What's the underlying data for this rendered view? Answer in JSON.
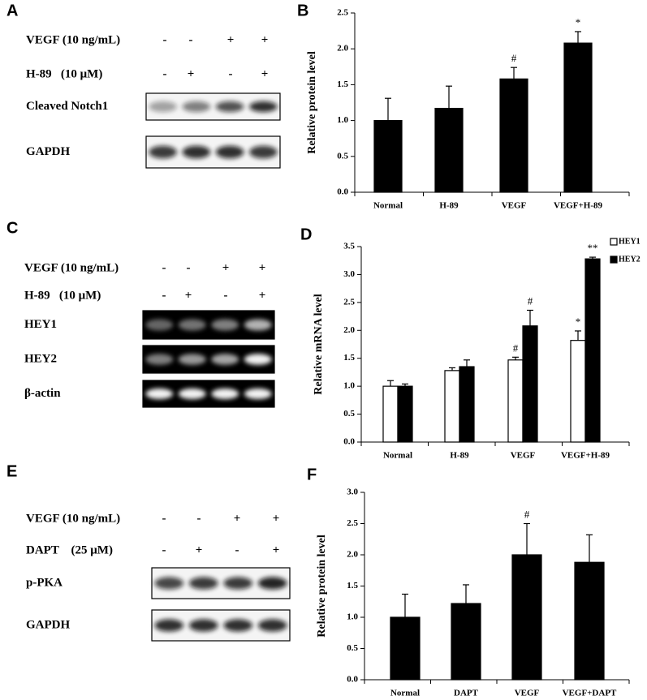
{
  "chart_data": [
    {
      "type": "bar",
      "panel": "B",
      "y_label": "Relative protein level",
      "categories": [
        "Normal",
        "H-89",
        "VEGF",
        "VEGF+H-89"
      ],
      "series": [
        {
          "name": null,
          "color": "#000000",
          "values": [
            1.0,
            1.17,
            1.58,
            2.08
          ],
          "errors": [
            0.31,
            0.31,
            0.16,
            0.16
          ],
          "significance": [
            null,
            null,
            "#",
            "*"
          ]
        }
      ],
      "ylim": [
        0,
        2.5
      ],
      "yticks": [
        {
          "value": 0,
          "label": "0.0"
        },
        0.5,
        {
          "value": 1,
          "label": "1.0"
        },
        1.5,
        {
          "value": 2,
          "label": "2.0"
        },
        2.5
      ],
      "grid": false
    },
    {
      "type": "bar",
      "panel": "D",
      "y_label": "Relative mRNA level",
      "categories": [
        "Normal",
        "H-89",
        "VEGF",
        "VEGF+H-89"
      ],
      "series": [
        {
          "name": "HEY1",
          "color": "#ffffff",
          "values": [
            1.0,
            1.28,
            1.47,
            1.82
          ],
          "errors": [
            0.1,
            0.05,
            0.05,
            0.17
          ],
          "significance": [
            null,
            null,
            "#",
            "*"
          ]
        },
        {
          "name": "HEY2",
          "color": "#000000",
          "values": [
            1.0,
            1.35,
            2.08,
            3.28
          ],
          "errors": [
            0.04,
            0.12,
            0.28,
            0.03
          ],
          "significance": [
            null,
            null,
            "#",
            "**"
          ]
        }
      ],
      "ylim": [
        0,
        3.5
      ],
      "yticks": [
        {
          "value": 0,
          "label": "0.0"
        },
        0.5,
        {
          "value": 1,
          "label": "1.0"
        },
        1.5,
        {
          "value": 2,
          "label": "2.0"
        },
        2.5,
        {
          "value": 3,
          "label": "3.0"
        },
        3.5
      ],
      "grid": false,
      "legend": "upper right"
    },
    {
      "type": "bar",
      "panel": "F",
      "y_label": "Relative protein level",
      "categories": [
        "Normal",
        "DAPT",
        "VEGF",
        "VEGF+DAPT"
      ],
      "series": [
        {
          "name": null,
          "color": "#000000",
          "values": [
            1.0,
            1.22,
            2.0,
            1.88
          ],
          "errors": [
            0.37,
            0.3,
            0.5,
            0.44
          ],
          "significance": [
            null,
            null,
            "#",
            null
          ]
        }
      ],
      "ylim": [
        0,
        3.0
      ],
      "yticks": [
        {
          "value": 0,
          "label": "0.0"
        },
        0.5,
        {
          "value": 1,
          "label": "1.0"
        },
        1.5,
        {
          "value": 2,
          "label": "2.0"
        },
        2.5,
        {
          "value": 3,
          "label": "3.0"
        }
      ],
      "grid": false
    }
  ],
  "blots": [
    {
      "panel": "A",
      "conditions": [
        {
          "name": "VEGF (10 ng/mL)",
          "signs": [
            "-",
            "-",
            "+",
            "+"
          ]
        },
        {
          "name": "H-89   (10 μM)",
          "signs": [
            "-",
            "+",
            "-",
            "+"
          ]
        }
      ],
      "bands": [
        "Cleaved Notch1",
        "GAPDH"
      ]
    },
    {
      "panel": "C",
      "conditions": [
        {
          "name": "VEGF (10 ng/mL)",
          "signs": [
            "-",
            "-",
            "+",
            "+"
          ]
        },
        {
          "name": "H-89   (10 μM)",
          "signs": [
            "-",
            "+",
            "-",
            "+"
          ]
        }
      ],
      "bands": [
        "HEY1",
        "HEY2",
        "β-actin"
      ]
    },
    {
      "panel": "E",
      "conditions": [
        {
          "name": "VEGF (10 ng/mL)",
          "signs": [
            "-",
            "-",
            "+",
            "+"
          ]
        },
        {
          "name": "DAPT    (25 μM)",
          "signs": [
            "-",
            "+",
            "-",
            "+"
          ]
        }
      ],
      "bands": [
        "p-PKA",
        "GAPDH"
      ]
    }
  ]
}
